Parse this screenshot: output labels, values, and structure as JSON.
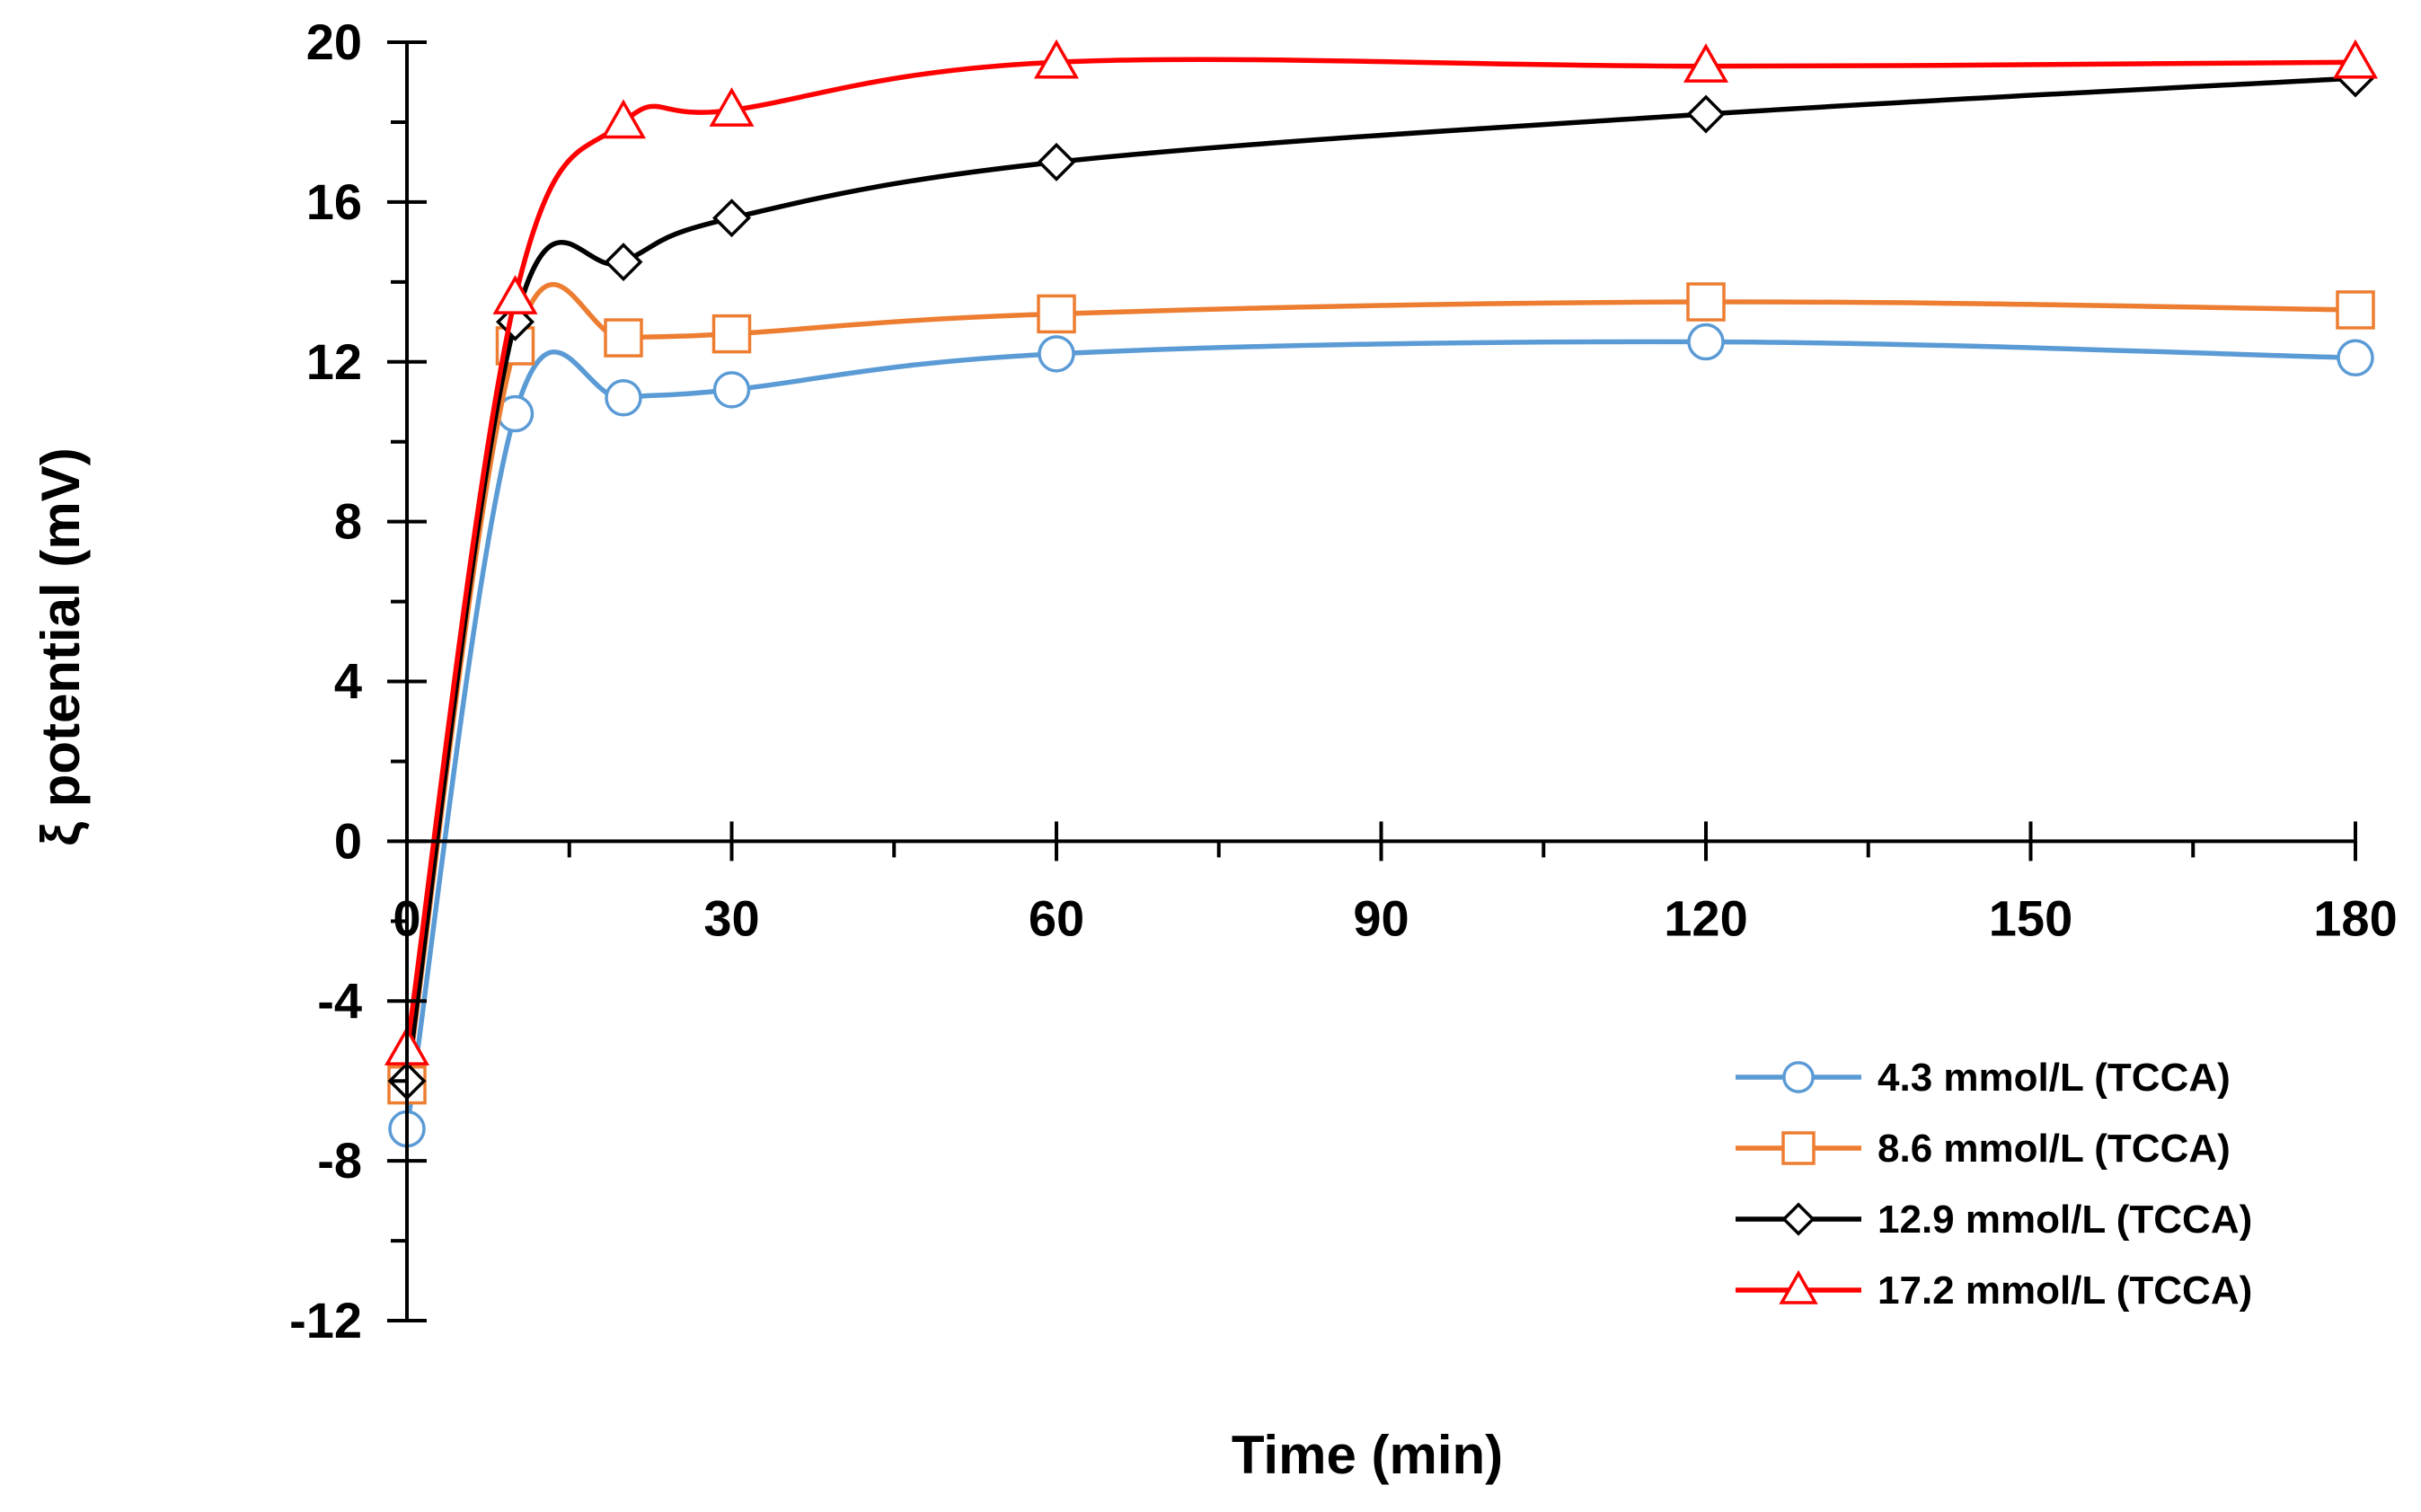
{
  "chart_data": {
    "type": "line",
    "title": "",
    "xlabel": "Time (min)",
    "ylabel": "ξ potential (mV)",
    "xlim": [
      0,
      180
    ],
    "ylim": [
      -12,
      20
    ],
    "x_major_ticks": [
      0,
      30,
      60,
      90,
      120,
      150,
      180
    ],
    "x_tick_labels": [
      "0",
      "30",
      "60",
      "90",
      "120",
      "150",
      "180"
    ],
    "y_major_ticks": [
      -12,
      -8,
      -4,
      0,
      4,
      8,
      12,
      16,
      20
    ],
    "y_tick_labels": [
      "-12",
      "-8",
      "-4",
      "0",
      "4",
      "8",
      "12",
      "16",
      "20"
    ],
    "x": [
      0,
      10,
      20,
      30,
      60,
      120,
      180
    ],
    "series": [
      {
        "name": "4.3 mmol/L (TCCA)",
        "color": "#5B9BD5",
        "marker": "circle",
        "values": [
          -7.2,
          10.7,
          11.1,
          11.3,
          12.2,
          12.5,
          12.1
        ]
      },
      {
        "name": "8.6 mmol/L (TCCA)",
        "color": "#ED7D31",
        "marker": "square",
        "values": [
          -6.1,
          12.4,
          12.6,
          12.7,
          13.2,
          13.5,
          13.3
        ]
      },
      {
        "name": "12.9 mmol/L (TCCA)",
        "color": "#000000",
        "marker": "diamond",
        "values": [
          -6.0,
          13.0,
          14.5,
          15.6,
          17.0,
          18.2,
          19.1
        ]
      },
      {
        "name": "17.2 mmol/L (TCCA)",
        "color": "#FF0000",
        "marker": "triangle",
        "values": [
          -5.2,
          13.6,
          18.0,
          18.3,
          19.5,
          19.4,
          19.5
        ]
      }
    ],
    "legend_position": "bottom-right",
    "grid": false
  }
}
